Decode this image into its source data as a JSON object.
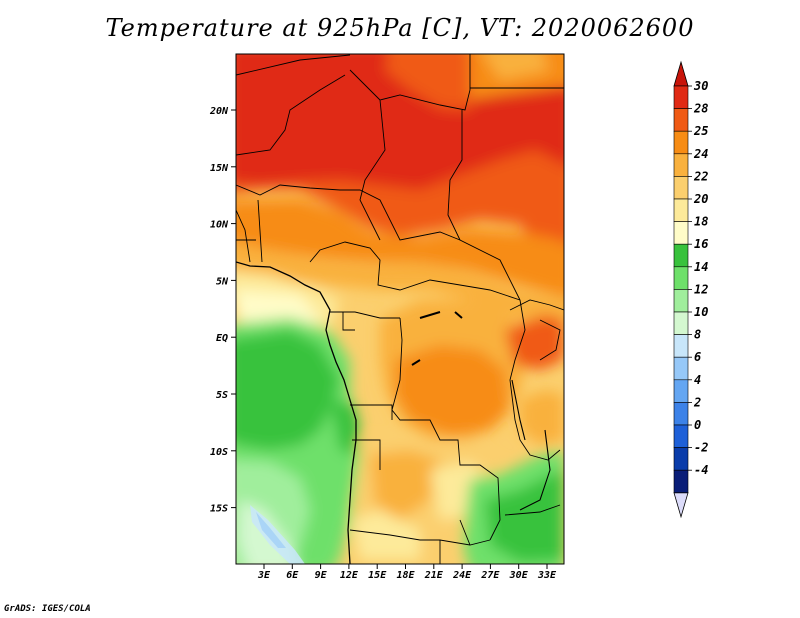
{
  "title": "Temperature at 925hPa [C], VT: 2020062600",
  "credit": "GrADS: IGES/COLA",
  "map": {
    "lat_labels": [
      "20N",
      "15N",
      "10N",
      "5N",
      "EQ",
      "5S",
      "10S",
      "15S"
    ],
    "lon_labels": [
      "3E",
      "6E",
      "9E",
      "12E",
      "15E",
      "18E",
      "21E",
      "24E",
      "27E",
      "30E",
      "33E"
    ]
  },
  "colorbar": {
    "labels": [
      "30",
      "28",
      "25",
      "24",
      "22",
      "20",
      "18",
      "16",
      "14",
      "12",
      "10",
      "8",
      "6",
      "4",
      "2",
      "0",
      "-2",
      "-4"
    ],
    "colors": [
      "#e02a14",
      "#f05a14",
      "#f78c14",
      "#f9b13e",
      "#fbcf6e",
      "#fdea9a",
      "#fffcc8",
      "#38c23c",
      "#6ee06a",
      "#a0ee9c",
      "#d4f8d0",
      "#c8e6fa",
      "#96c8f8",
      "#64a6f2",
      "#3c82e8",
      "#1e60d8",
      "#0a3caa",
      "#0a1e78"
    ],
    "top_arrow_color": "#c8140a",
    "bottom_arrow_color": "#dcdcfa"
  }
}
